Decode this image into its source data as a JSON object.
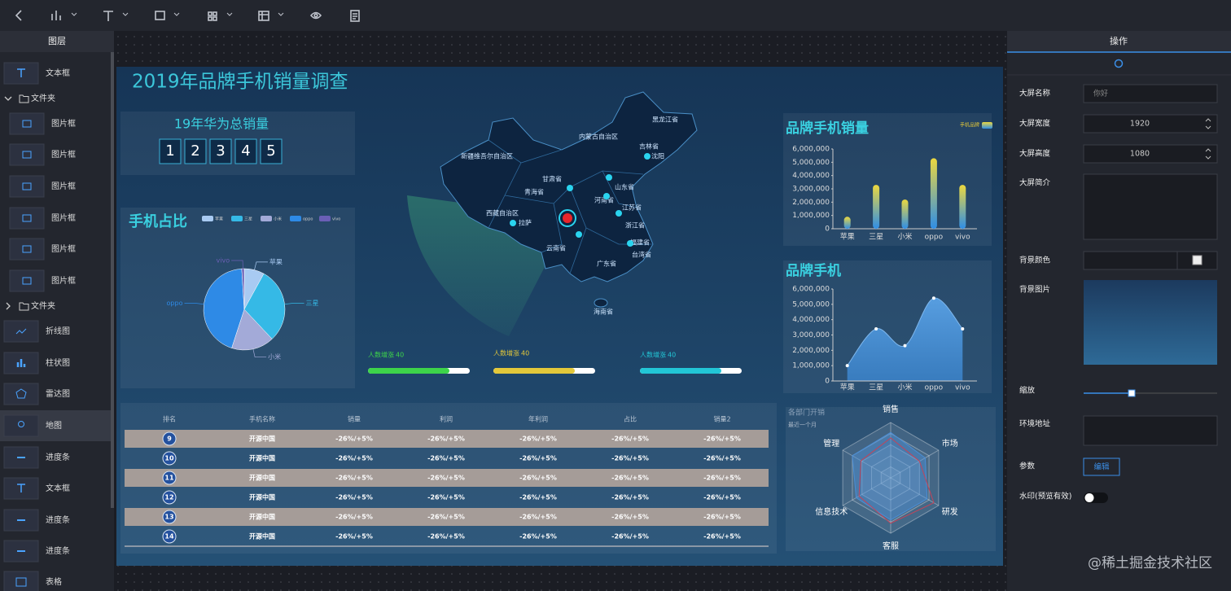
{
  "layers": {
    "title": "图层",
    "items": [
      {
        "label": "文本框"
      },
      {
        "label": "文件夹"
      },
      {
        "label": "图片框"
      },
      {
        "label": "图片框"
      },
      {
        "label": "图片框"
      },
      {
        "label": "图片框"
      },
      {
        "label": "图片框"
      },
      {
        "label": "图片框"
      },
      {
        "label": "文件夹"
      },
      {
        "label": "折线图"
      },
      {
        "label": "柱状图"
      },
      {
        "label": "雷达图"
      },
      {
        "label": "地图"
      },
      {
        "label": "进度条"
      },
      {
        "label": "文本框"
      },
      {
        "label": "进度条"
      },
      {
        "label": "进度条"
      },
      {
        "label": "表格"
      }
    ]
  },
  "screen": {
    "title": "2019年品牌手机销量调查",
    "total": {
      "title": "19年华为总销量",
      "digits": [
        1,
        2,
        3,
        4,
        5
      ]
    },
    "map": {
      "labels": [
        "黑龙江省",
        "内蒙古自治区",
        "吉林省",
        "沈阳",
        "新疆维吾尔自治区",
        "甘肃省",
        "青海省",
        "山东省",
        "河南省",
        "西藏自治区",
        "拉萨",
        "江苏省",
        "浙江省",
        "福建省",
        "台湾省",
        "广东省",
        "云南省",
        "海南省"
      ]
    },
    "progress": [
      {
        "label": "人数增涨",
        "value": 40,
        "percent": 80,
        "color": "#3dd44a"
      },
      {
        "label": "人数增涨",
        "value": 40,
        "percent": 80,
        "color": "#e3c83a"
      },
      {
        "label": "人数增涨",
        "value": 40,
        "percent": 80,
        "color": "#22c6d6"
      }
    ],
    "table": {
      "columns": [
        "排名",
        "手机名称",
        "销量",
        "利润",
        "年利润",
        "占比",
        "销量2"
      ],
      "rows": [
        [
          9,
          "开源中国",
          "-26%/+5%",
          "-26%/+5%",
          "-26%/+5%",
          "-26%/+5%",
          "-26%/+5%"
        ],
        [
          10,
          "开源中国",
          "-26%/+5%",
          "-26%/+5%",
          "-26%/+5%",
          "-26%/+5%",
          "-26%/+5%"
        ],
        [
          11,
          "开源中国",
          "-26%/+5%",
          "-26%/+5%",
          "-26%/+5%",
          "-26%/+5%",
          "-26%/+5%"
        ],
        [
          12,
          "开源中国",
          "-26%/+5%",
          "-26%/+5%",
          "-26%/+5%",
          "-26%/+5%",
          "-26%/+5%"
        ],
        [
          13,
          "开源中国",
          "-26%/+5%",
          "-26%/+5%",
          "-26%/+5%",
          "-26%/+5%",
          "-26%/+5%"
        ],
        [
          14,
          "开源中国",
          "-26%/+5%",
          "-26%/+5%",
          "-26%/+5%",
          "-26%/+5%",
          "-26%/+5%"
        ]
      ]
    }
  },
  "chart_data": [
    {
      "type": "pie",
      "title": "手机占比",
      "categories": [
        "苹果",
        "三星",
        "小米",
        "oppo",
        "vivo"
      ],
      "values": [
        8,
        30,
        17,
        44,
        1
      ],
      "colors": [
        "#a8caf2",
        "#35b9e6",
        "#a3aad8",
        "#2e8ae6",
        "#6b5fb5"
      ]
    },
    {
      "type": "bar",
      "title": "品牌手机销量",
      "categories": [
        "苹果",
        "三星",
        "小米",
        "oppo",
        "vivo"
      ],
      "series": [
        {
          "name": "手机品牌",
          "values": [
            900000,
            3300000,
            2200000,
            5300000,
            3300000
          ]
        }
      ],
      "ylim": [
        0,
        6000000
      ],
      "yticks": [
        0,
        {
          "value": 1000000,
          "label": "1,000,000"
        },
        {
          "value": 2000000,
          "label": "2,000,000"
        },
        {
          "value": 3000000,
          "label": "3,000,000"
        },
        {
          "value": 4000000,
          "label": "4,000,000"
        },
        {
          "value": 5000000,
          "label": "5,000,000"
        },
        {
          "value": 6000000,
          "label": "6,000,000"
        }
      ]
    },
    {
      "type": "area",
      "title": "品牌手机",
      "categories": [
        "苹果",
        "三星",
        "小米",
        "oppo",
        "vivo"
      ],
      "values": [
        1000000,
        3400000,
        2300000,
        5400000,
        3400000
      ],
      "color": "#3d8fd8",
      "ylim": [
        0,
        6000000
      ],
      "yticks": [
        0,
        {
          "value": 1000000,
          "label": "1,000,000"
        },
        {
          "value": 2000000,
          "label": "2,000,000"
        },
        {
          "value": 3000000,
          "label": "3,000,000"
        },
        {
          "value": 4000000,
          "label": "4,000,000"
        },
        {
          "value": 5000000,
          "label": "5,000,000"
        },
        {
          "value": 6000000,
          "label": "6,000,000"
        }
      ]
    },
    {
      "type": "radar",
      "title": "各部门开销",
      "subtitle": "最近一个月",
      "indicators": [
        "销售",
        "市场",
        "研发",
        "客服",
        "信息技术",
        "管理"
      ],
      "rlim": [
        0,
        100
      ],
      "series": [
        {
          "color": "#4a8ed6",
          "values": [
            82,
            72,
            76,
            76,
            72,
            80
          ]
        },
        {
          "color": "#c2455a",
          "values": [
            72,
            60,
            90,
            82,
            66,
            62
          ]
        }
      ]
    }
  ],
  "settings": {
    "title": "操作",
    "fields": [
      {
        "label": "大屏名称",
        "placeholder": "你好"
      },
      {
        "label": "大屏宽度",
        "value": 1920
      },
      {
        "label": "大屏高度",
        "value": 1080
      },
      {
        "label": "大屏简介"
      },
      {
        "label": "背景颜色"
      },
      {
        "label": "背景图片"
      },
      {
        "label": "缩放"
      },
      {
        "label": "环境地址"
      },
      {
        "label": "参数",
        "button": "编辑"
      },
      {
        "label": "水印(预览有效)"
      }
    ]
  },
  "watermark": "@稀土掘金技术社区"
}
